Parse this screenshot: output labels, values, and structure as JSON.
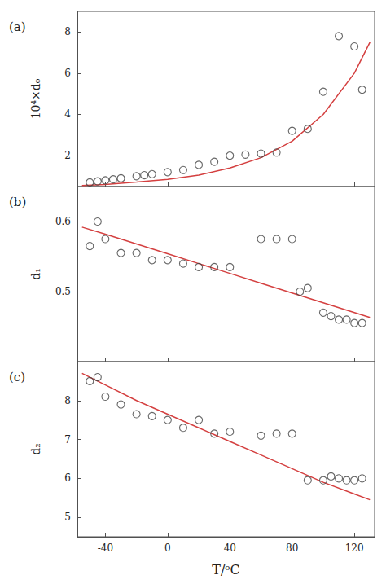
{
  "chart_data": [
    {
      "type": "scatter",
      "title": "(a)",
      "ylabel": "10⁴×d₀",
      "xlim": [
        -58,
        133
      ],
      "xticks": [
        -40,
        0,
        40,
        80,
        120
      ],
      "ylim": [
        0.5,
        9.0
      ],
      "yticks": [
        2,
        4,
        6,
        8
      ],
      "grid": false,
      "tick_labels": "y",
      "series": [
        {
          "type": "scatter",
          "color": "#404040",
          "marker": "open_circle",
          "x": [
            -50,
            -45,
            -40,
            -35,
            -30,
            -20,
            -15,
            -10,
            0,
            10,
            20,
            30,
            40,
            50,
            60,
            70,
            80,
            90,
            100,
            110,
            120,
            125
          ],
          "values": [
            0.7,
            0.75,
            0.8,
            0.85,
            0.9,
            1.0,
            1.05,
            1.1,
            1.2,
            1.3,
            1.55,
            1.7,
            2.0,
            2.05,
            2.1,
            2.15,
            3.2,
            3.3,
            5.1,
            7.8,
            7.3,
            5.2
          ]
        },
        {
          "type": "line",
          "color": "#d44040",
          "line_style": "solid",
          "x": [
            -55,
            -40,
            -20,
            0,
            20,
            40,
            60,
            80,
            100,
            120,
            130
          ],
          "values": [
            0.55,
            0.6,
            0.72,
            0.85,
            1.05,
            1.4,
            1.9,
            2.7,
            4.0,
            6.0,
            7.5
          ]
        }
      ]
    },
    {
      "type": "scatter",
      "title": "(b)",
      "ylabel": "d₁",
      "xlim": [
        -58,
        133
      ],
      "xticks": [
        -40,
        0,
        40,
        80,
        120
      ],
      "ylim": [
        0.4,
        0.65
      ],
      "yticks": [
        0.5,
        0.6
      ],
      "grid": false,
      "tick_labels": "y",
      "series": [
        {
          "type": "scatter",
          "color": "#404040",
          "marker": "open_circle",
          "x": [
            -50,
            -45,
            -40,
            -30,
            -20,
            -10,
            0,
            10,
            20,
            30,
            40,
            60,
            70,
            80,
            85,
            90,
            100,
            105,
            110,
            115,
            120,
            125
          ],
          "values": [
            0.565,
            0.6,
            0.575,
            0.555,
            0.555,
            0.545,
            0.545,
            0.54,
            0.535,
            0.535,
            0.535,
            0.575,
            0.575,
            0.575,
            0.5,
            0.505,
            0.47,
            0.465,
            0.46,
            0.46,
            0.455,
            0.455
          ]
        },
        {
          "type": "line",
          "color": "#d44040",
          "line_style": "solid",
          "x": [
            -55,
            -40,
            -20,
            0,
            20,
            40,
            60,
            80,
            100,
            120,
            130
          ],
          "values": [
            0.592,
            0.582,
            0.568,
            0.554,
            0.54,
            0.526,
            0.512,
            0.498,
            0.484,
            0.47,
            0.463
          ]
        }
      ]
    },
    {
      "type": "scatter",
      "title": "(c)",
      "ylabel": "d₂",
      "xlabel": "T/ᵒC",
      "xlim": [
        -58,
        133
      ],
      "xticks": [
        -40,
        0,
        40,
        80,
        120
      ],
      "ylim": [
        4.5,
        9.0
      ],
      "yticks": [
        5,
        6,
        7,
        8
      ],
      "grid": false,
      "series": [
        {
          "type": "scatter",
          "color": "#404040",
          "marker": "open_circle",
          "x": [
            -50,
            -45,
            -40,
            -30,
            -20,
            -10,
            0,
            10,
            20,
            30,
            40,
            60,
            70,
            80,
            90,
            100,
            105,
            110,
            115,
            120,
            125
          ],
          "values": [
            8.5,
            8.6,
            8.1,
            7.9,
            7.65,
            7.6,
            7.5,
            7.3,
            7.5,
            7.15,
            7.2,
            7.1,
            7.15,
            7.15,
            5.95,
            5.95,
            6.05,
            6.0,
            5.95,
            5.95,
            6.0
          ]
        },
        {
          "type": "line",
          "color": "#d44040",
          "line_style": "solid",
          "x": [
            -55,
            -40,
            -20,
            0,
            20,
            40,
            60,
            80,
            100,
            120,
            130
          ],
          "values": [
            8.7,
            8.4,
            8.0,
            7.65,
            7.3,
            6.95,
            6.6,
            6.25,
            5.9,
            5.6,
            5.45
          ]
        }
      ]
    }
  ]
}
